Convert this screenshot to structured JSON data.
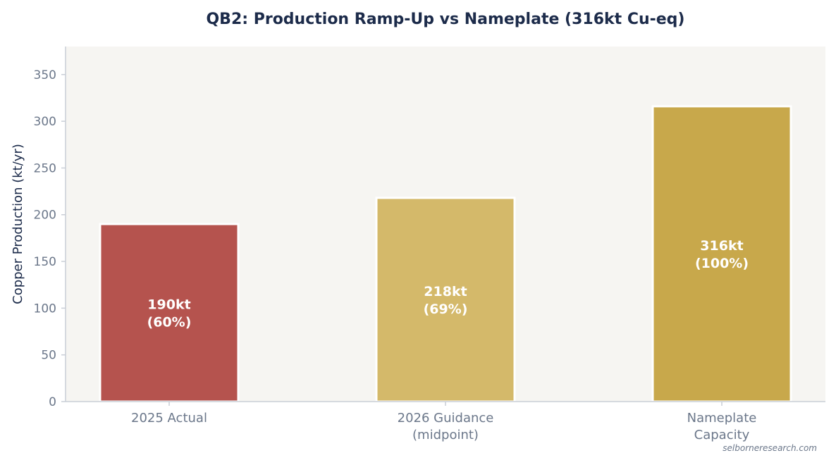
{
  "chart_data": {
    "type": "bar",
    "title": "QB2: Production Ramp-Up vs Nameplate (316kt Cu-eq)",
    "ylabel": "Copper Production (kt/yr)",
    "xlabel": "",
    "ylim": [
      0,
      380
    ],
    "yticks": [
      0,
      50,
      100,
      150,
      200,
      250,
      300,
      350
    ],
    "grid": false,
    "categories": [
      [
        "2025 Actual"
      ],
      [
        "2026 Guidance",
        "(midpoint)"
      ],
      [
        "Nameplate",
        "Capacity"
      ]
    ],
    "values": [
      190,
      218,
      316
    ],
    "data_labels": [
      [
        "190kt",
        "(60%)"
      ],
      [
        "218kt",
        "(69%)"
      ],
      [
        "316kt",
        "(100%)"
      ]
    ],
    "colors": [
      "#b5534e",
      "#d4b96a",
      "#c8a84b"
    ],
    "plot_background": "#f6f5f2",
    "source": "selborneresearch.com"
  }
}
